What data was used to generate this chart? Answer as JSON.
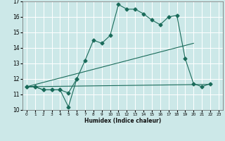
{
  "xlabel": "Humidex (Indice chaleur)",
  "xlim": [
    -0.5,
    23.5
  ],
  "ylim": [
    10,
    17
  ],
  "xticks": [
    0,
    1,
    2,
    3,
    4,
    5,
    6,
    7,
    8,
    9,
    10,
    11,
    12,
    13,
    14,
    15,
    16,
    17,
    18,
    19,
    20,
    21,
    22,
    23
  ],
  "yticks": [
    10,
    11,
    12,
    13,
    14,
    15,
    16,
    17
  ],
  "bg_color": "#cce8e8",
  "grid_color": "#ffffff",
  "line_color": "#1a6b5a",
  "line1_x": [
    0,
    1,
    2,
    3,
    4,
    5,
    6,
    7,
    8,
    9,
    10,
    11,
    12,
    13,
    14,
    15,
    16,
    17,
    18,
    19,
    20,
    21,
    22
  ],
  "line1_y": [
    11.5,
    11.5,
    11.3,
    11.3,
    11.3,
    10.2,
    12.0,
    13.2,
    14.5,
    14.3,
    14.8,
    16.8,
    16.5,
    16.5,
    16.2,
    15.8,
    15.5,
    16.0,
    16.1,
    13.3,
    11.7,
    11.5,
    11.7
  ],
  "line2_x": [
    0,
    1,
    2,
    3,
    4,
    5,
    6
  ],
  "line2_y": [
    11.5,
    11.5,
    11.3,
    11.3,
    11.3,
    11.1,
    12.0
  ],
  "line3_x": [
    0,
    22
  ],
  "line3_y": [
    11.5,
    11.65
  ],
  "line4_x": [
    0,
    20
  ],
  "line4_y": [
    11.5,
    14.3
  ],
  "marker": "D",
  "marker_size": 2.5
}
